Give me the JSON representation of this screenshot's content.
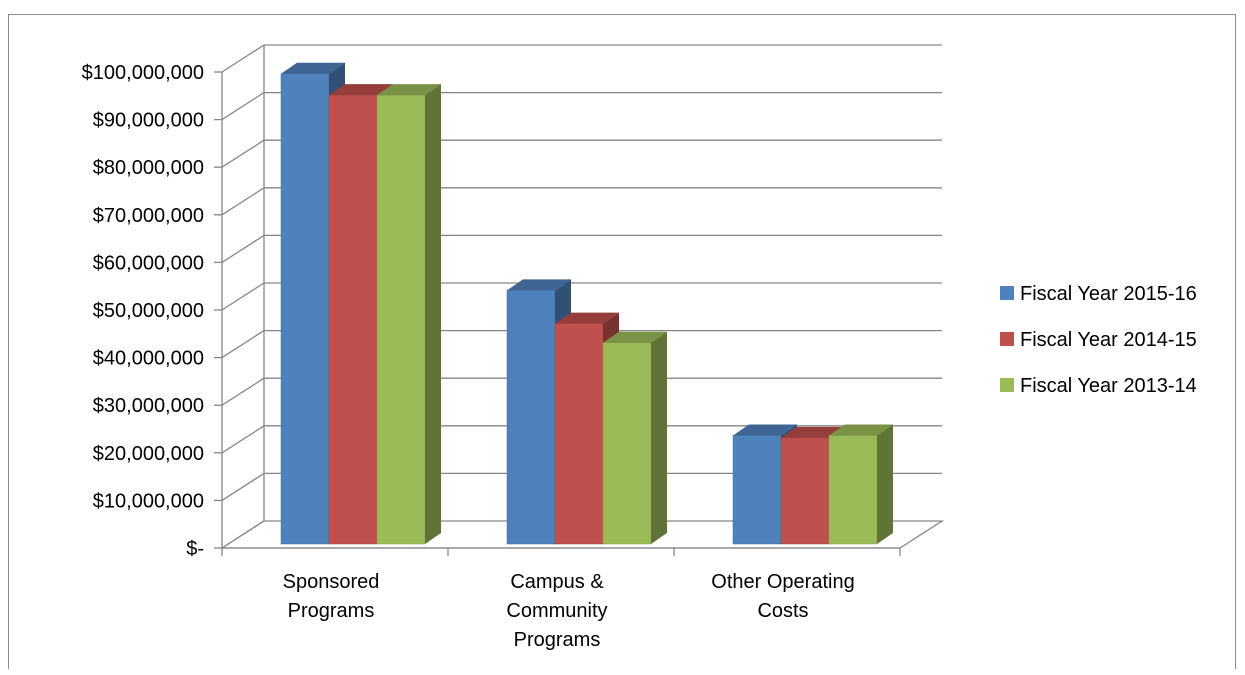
{
  "chart_data": {
    "type": "bar",
    "categories": [
      [
        "Sponsored",
        "Programs"
      ],
      [
        "Campus &",
        "Community",
        "Programs"
      ],
      [
        "Other Operating",
        "Costs"
      ]
    ],
    "series": [
      {
        "name": "Fiscal Year 2015-16",
        "color": "#4f81bd",
        "values": [
          99000000,
          53500000,
          23000000
        ]
      },
      {
        "name": "Fiscal Year 2014-15",
        "color": "#c0504d",
        "values": [
          94500000,
          46500000,
          22500000
        ]
      },
      {
        "name": "Fiscal Year 2013-14",
        "color": "#9bbb59",
        "values": [
          94500000,
          42500000,
          23000000
        ]
      }
    ],
    "ylim": [
      0,
      100000000
    ],
    "yticks": [
      "$-",
      "$10,000,000",
      "$20,000,000",
      "$30,000,000",
      "$40,000,000",
      "$50,000,000",
      "$60,000,000",
      "$70,000,000",
      "$80,000,000",
      "$90,000,000",
      "$100,000,000"
    ],
    "grid": true,
    "legend_position": "right",
    "style": "3d-clustered-column"
  }
}
